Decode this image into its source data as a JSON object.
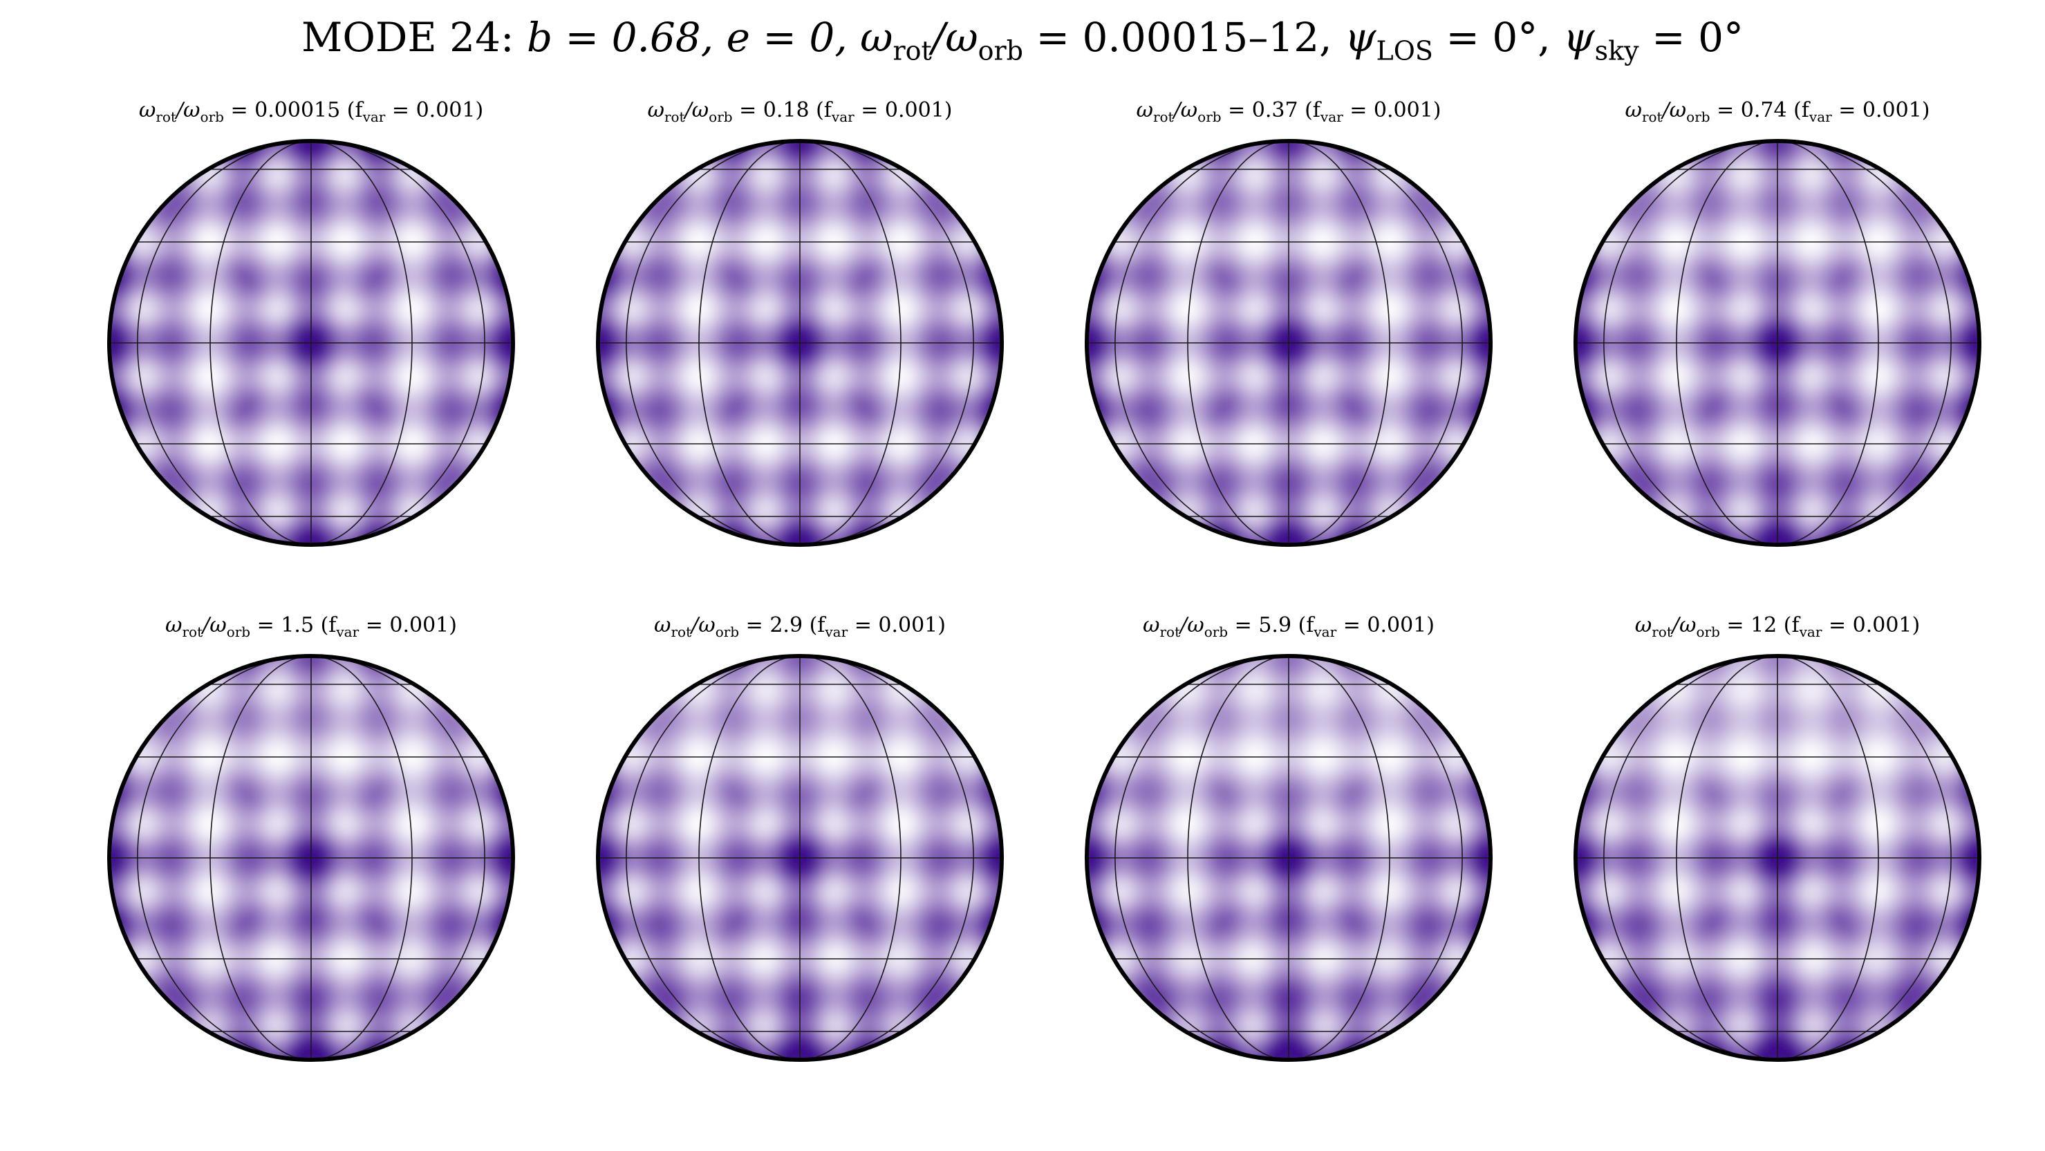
{
  "title": "MODE 24: b = 0.68, e = 0, ω_rot/ω_orb = 0.00015–12, ψ_LOS = 0°, ψ_sky = 0°",
  "title_parts": {
    "lead": "MODE 24: ",
    "b": "b = 0.68, ",
    "e": "e = 0, ",
    "omega": "ω",
    "rot": "rot",
    "slash": "/ω",
    "orb": "orb",
    "range": " = 0.00015–12, ",
    "psi1": "ψ",
    "los": "LOS",
    "psi1val": " = 0°, ",
    "psi2": "ψ",
    "sky": "sky",
    "psi2val": " = 0°"
  },
  "colors": {
    "map_low": "#ffffff",
    "map_high": "#3d0a8c",
    "grid": "#1a1a1a",
    "limb": "#000000"
  },
  "panels": [
    {
      "ratio": "0.00015",
      "fvar": "0.001",
      "label_pre": "ω",
      "label_rot": "rot",
      "label_mid": "/ω",
      "label_orb": "orb",
      "label_eq": " = 0.00015 (f",
      "label_var": "var",
      "label_end": " = 0.001)"
    },
    {
      "ratio": "0.18",
      "fvar": "0.001",
      "label_pre": "ω",
      "label_rot": "rot",
      "label_mid": "/ω",
      "label_orb": "orb",
      "label_eq": " = 0.18 (f",
      "label_var": "var",
      "label_end": " = 0.001)"
    },
    {
      "ratio": "0.37",
      "fvar": "0.001",
      "label_pre": "ω",
      "label_rot": "rot",
      "label_mid": "/ω",
      "label_orb": "orb",
      "label_eq": " = 0.37 (f",
      "label_var": "var",
      "label_end": " = 0.001)"
    },
    {
      "ratio": "0.74",
      "fvar": "0.001",
      "label_pre": "ω",
      "label_rot": "rot",
      "label_mid": "/ω",
      "label_orb": "orb",
      "label_eq": " = 0.74 (f",
      "label_var": "var",
      "label_end": " = 0.001)"
    },
    {
      "ratio": "1.5",
      "fvar": "0.001",
      "label_pre": "ω",
      "label_rot": "rot",
      "label_mid": "/ω",
      "label_orb": "orb",
      "label_eq": " = 1.5 (f",
      "label_var": "var",
      "label_end": " = 0.001)"
    },
    {
      "ratio": "2.9",
      "fvar": "0.001",
      "label_pre": "ω",
      "label_rot": "rot",
      "label_mid": "/ω",
      "label_orb": "orb",
      "label_eq": " = 2.9 (f",
      "label_var": "var",
      "label_end": " = 0.001)"
    },
    {
      "ratio": "5.9",
      "fvar": "0.001",
      "label_pre": "ω",
      "label_rot": "rot",
      "label_mid": "/ω",
      "label_orb": "orb",
      "label_eq": " = 5.9 (f",
      "label_var": "var",
      "label_end": " = 0.001)"
    },
    {
      "ratio": "12",
      "fvar": "0.001",
      "label_pre": "ω",
      "label_rot": "rot",
      "label_mid": "/ω",
      "label_orb": "orb",
      "label_eq": " = 12 (f",
      "label_var": "var",
      "label_end": " = 0.001)"
    }
  ]
}
